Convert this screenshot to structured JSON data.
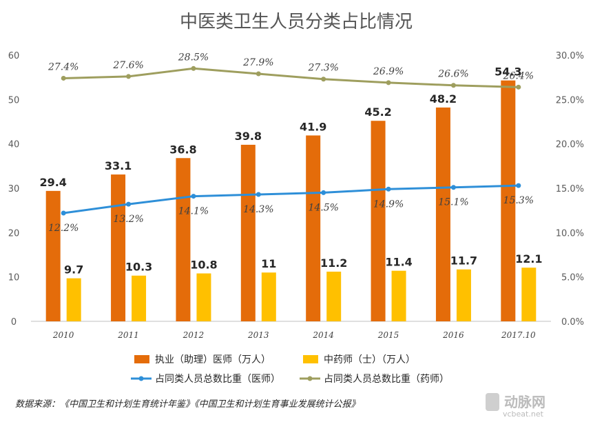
{
  "chart_data": {
    "type": "bar",
    "title": "中医类卫生人员分类占比情况",
    "categories": [
      "2010",
      "2011",
      "2012",
      "2013",
      "2014",
      "2015",
      "2016",
      "2017.10"
    ],
    "ylim_left": [
      0,
      60
    ],
    "ylim_right": [
      0,
      30
    ],
    "left_ticks": [
      "0",
      "10",
      "20",
      "30",
      "40",
      "50",
      "60"
    ],
    "right_ticks": [
      "0.0%",
      "5.0%",
      "10.0%",
      "15.0%",
      "20.0%",
      "25.0%",
      "30.0%"
    ],
    "bar_series": [
      {
        "name": "执业（助理）医师（万人）",
        "color": "#E46C0A",
        "values": [
          29.4,
          33.1,
          36.8,
          39.8,
          41.9,
          45.2,
          48.2,
          54.3
        ],
        "labels": [
          "29.4",
          "33.1",
          "36.8",
          "39.8",
          "41.9",
          "45.2",
          "48.2",
          "54.3"
        ]
      },
      {
        "name": "中药师（士）（万人）",
        "color": "#FFC000",
        "values": [
          9.7,
          10.3,
          10.8,
          11,
          11.2,
          11.4,
          11.7,
          12.1
        ],
        "labels": [
          "9.7",
          "10.3",
          "10.8",
          "11",
          "11.2",
          "11.4",
          "11.7",
          "12.1"
        ]
      }
    ],
    "line_series": [
      {
        "name": "占同类人员总数比重（医师）",
        "color": "#2E8FD8",
        "values": [
          12.2,
          13.2,
          14.1,
          14.3,
          14.5,
          14.9,
          15.1,
          15.3
        ],
        "labels": [
          "12.2%",
          "13.2%",
          "14.1%",
          "14.3%",
          "14.5%",
          "14.9%",
          "15.1%",
          "15.3%"
        ]
      },
      {
        "name": "占同类人员总数比重（药师）",
        "color": "#9E9E5E",
        "values": [
          27.4,
          27.6,
          28.5,
          27.9,
          27.3,
          26.9,
          26.6,
          26.4
        ],
        "labels": [
          "27.4%",
          "27.6%",
          "28.5%",
          "27.9%",
          "27.3%",
          "26.9%",
          "26.6%",
          "26.4%"
        ]
      }
    ],
    "legend_position": "bottom",
    "grid": false
  },
  "source_note": "数据来源：《中国卫生和计划生育统计年鉴》《中国卫生和计划生育事业发展统计公报》",
  "watermark": {
    "text": "动脉网",
    "url": "vcbeat.net"
  }
}
